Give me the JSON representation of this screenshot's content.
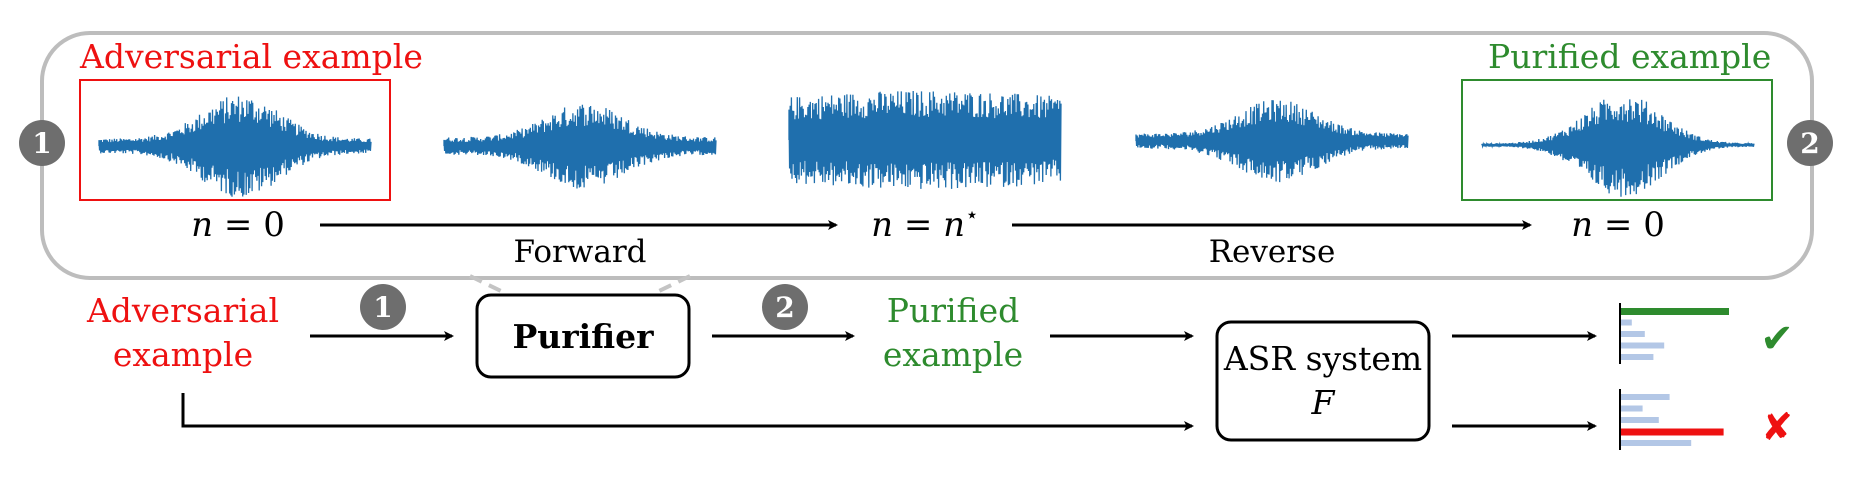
{
  "top_panel": {
    "adversarial_title": "Adversarial example",
    "purified_title": "Purified example",
    "step_n0_left": {
      "var": "n",
      "rel": " = ",
      "val": "0"
    },
    "step_nstar": {
      "var": "n",
      "rel": " = ",
      "val": "n",
      "sup": "⋆"
    },
    "step_n0_right": {
      "var": "n",
      "rel": " = ",
      "val": "0"
    },
    "forward_label": "Forward",
    "reverse_label": "Reverse",
    "badge_left": "1",
    "badge_right": "2"
  },
  "pipeline": {
    "input_line1": "Adversarial",
    "input_line2": "example",
    "badge_1": "1",
    "purifier_label": "Purifier",
    "badge_2": "2",
    "purified_line1": "Purified",
    "purified_line2": "example",
    "asr_line1": "ASR system",
    "asr_line2": "F",
    "check_mark": "✔",
    "cross_mark": "✘"
  },
  "colors": {
    "red": "#ee1111",
    "green": "#2e8b2e",
    "wave_blue": "#1f6fad",
    "badge_gray": "#6e6e6e",
    "panel_border": "#bdbdbd",
    "bar_light": "#b3c7e6"
  },
  "bars_top": {
    "values": [
      1.0,
      0.1,
      0.22,
      0.4,
      0.3
    ],
    "correct_index": 0
  },
  "bars_bottom": {
    "values": [
      0.45,
      0.2,
      0.35,
      0.95,
      0.65
    ],
    "highlight_index": 3
  }
}
